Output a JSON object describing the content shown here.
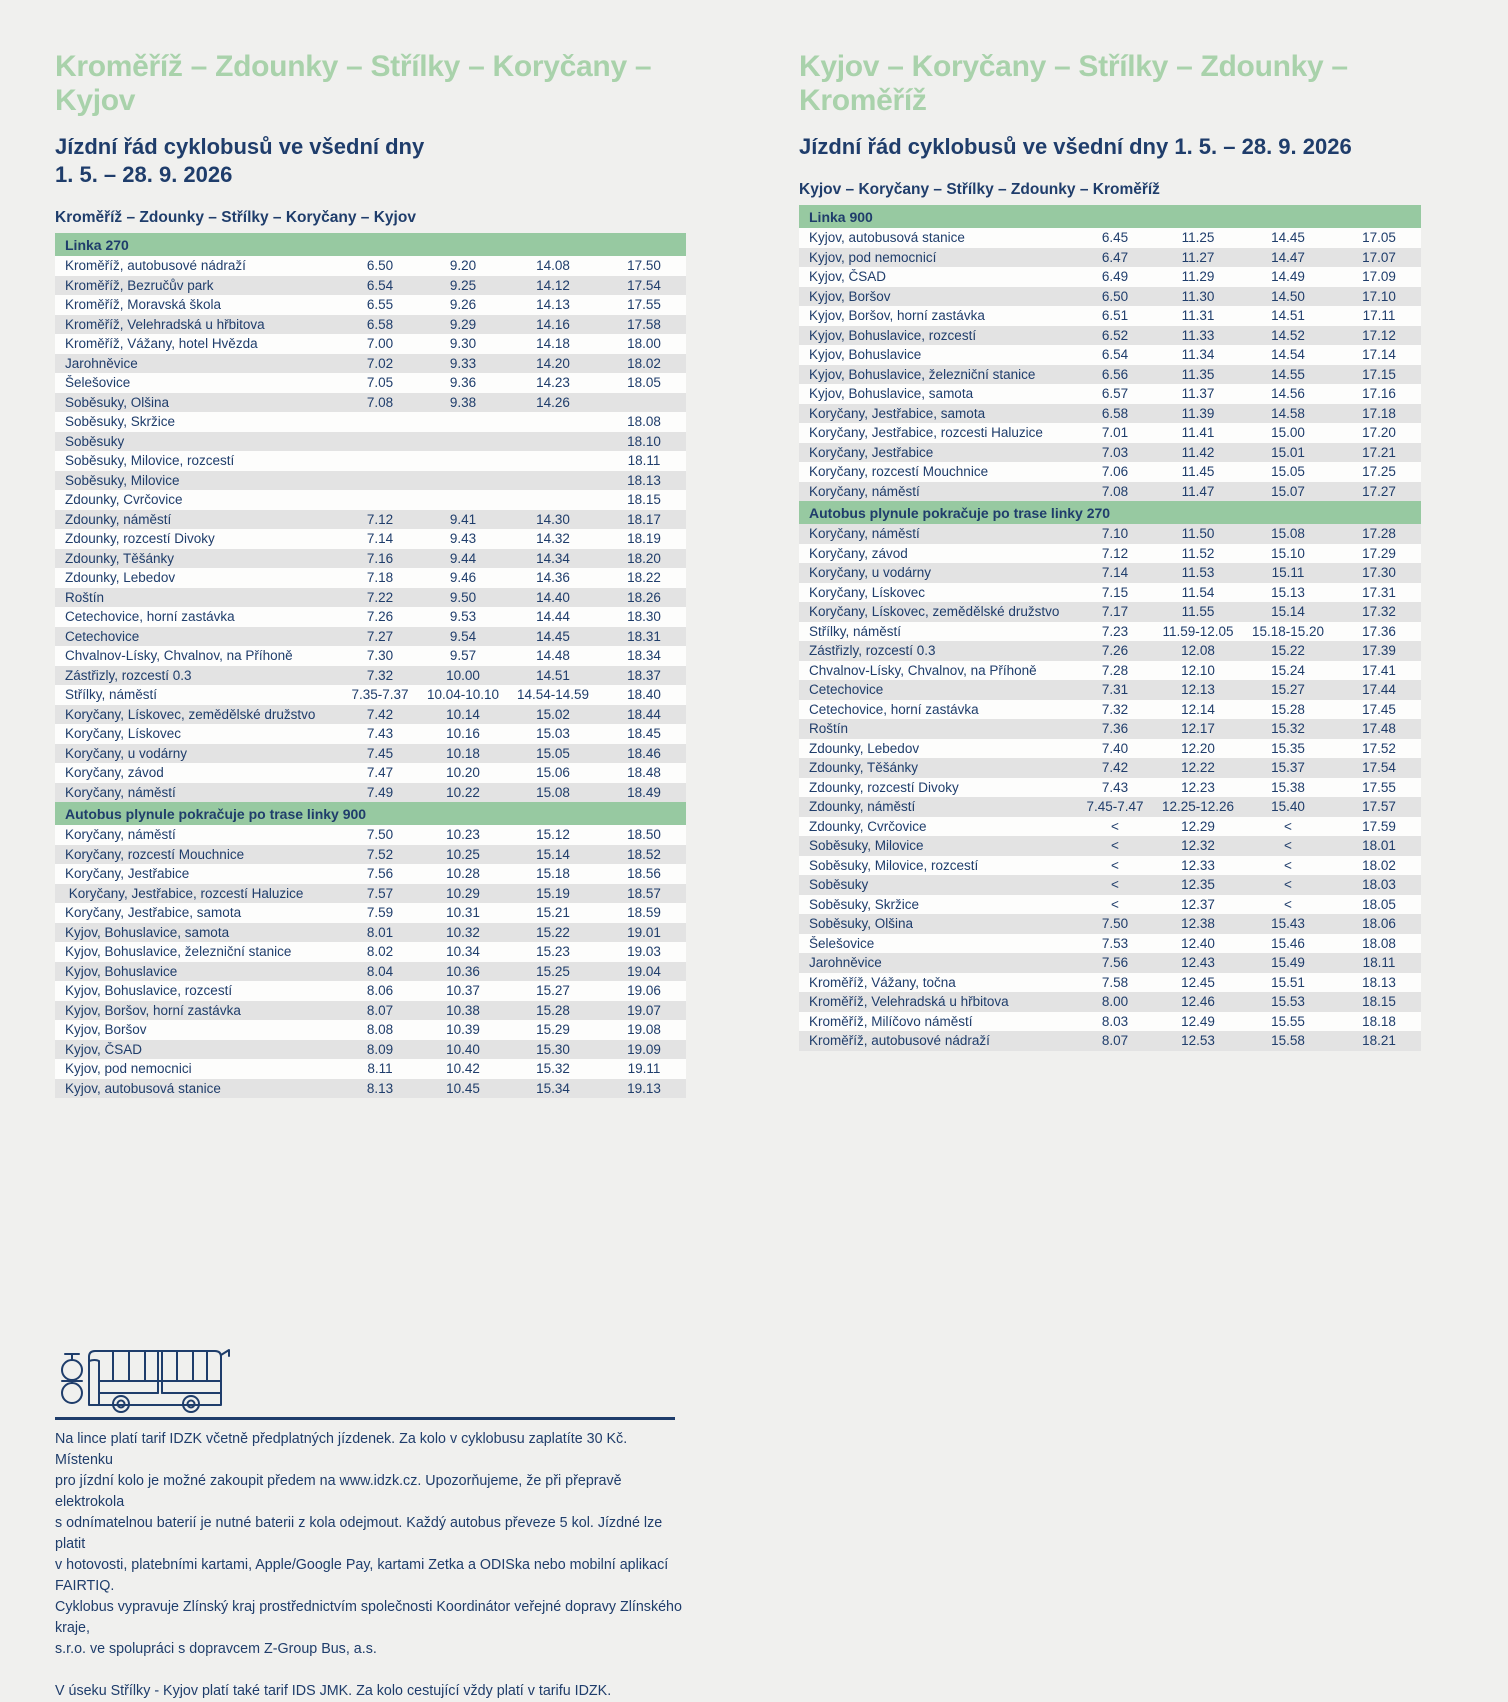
{
  "colors": {
    "background": "#f0f0ee",
    "title_green": "#a9d2ab",
    "band_green": "#97c9a1",
    "navy_text": "#1f3d6b",
    "row_shade": "#e3e3e3"
  },
  "left": {
    "title": "Kroměříž – Zdounky – Střílky – Koryčany – Kyjov",
    "subtitle_line1": "Jízdní řád cyklobusů ve všední dny",
    "subtitle_line2": "1. 5. – 28. 9. 2026",
    "caption": "Kroměříž – Zdounky – Střílky – Koryčany – Kyjov",
    "table": {
      "sections": [
        {
          "header": "Linka 270",
          "shaded_when": 1,
          "rows": [
            {
              "stop": "Kroměříž, autobusové nádraží",
              "times": [
                "6.50",
                "9.20",
                "14.08",
                "17.50"
              ]
            },
            {
              "stop": "Kroměříž, Bezručův park",
              "times": [
                "6.54",
                "9.25",
                "14.12",
                "17.54"
              ]
            },
            {
              "stop": "Kroměříž, Moravská škola",
              "times": [
                "6.55",
                "9.26",
                "14.13",
                "17.55"
              ]
            },
            {
              "stop": "Kroměříž, Velehradská u hřbitova",
              "times": [
                "6.58",
                "9.29",
                "14.16",
                "17.58"
              ]
            },
            {
              "stop": "Kroměříž, Vážany, hotel Hvězda",
              "times": [
                "7.00",
                "9.30",
                "14.18",
                "18.00"
              ]
            },
            {
              "stop": "Jarohněvice",
              "times": [
                "7.02",
                "9.33",
                "14.20",
                "18.02"
              ]
            },
            {
              "stop": "Šelešovice",
              "times": [
                "7.05",
                "9.36",
                "14.23",
                "18.05"
              ]
            },
            {
              "stop": "Soběsuky, Olšina",
              "times": [
                "7.08",
                "9.38",
                "14.26",
                ""
              ]
            },
            {
              "stop": "Soběsuky, Skržice",
              "times": [
                "",
                "",
                "",
                "18.08"
              ]
            },
            {
              "stop": "Soběsuky",
              "times": [
                "",
                "",
                "",
                "18.10"
              ]
            },
            {
              "stop": "Soběsuky, Milovice, rozcestí",
              "times": [
                "",
                "",
                "",
                "18.11"
              ]
            },
            {
              "stop": "Soběsuky, Milovice",
              "times": [
                "",
                "",
                "",
                "18.13"
              ]
            },
            {
              "stop": "Zdounky, Cvrčovice",
              "times": [
                "",
                "",
                "",
                "18.15"
              ]
            },
            {
              "stop": "Zdounky, náměstí",
              "times": [
                "7.12",
                "9.41",
                "14.30",
                "18.17"
              ]
            },
            {
              "stop": "Zdounky, rozcestí Divoky",
              "times": [
                "7.14",
                "9.43",
                "14.32",
                "18.19"
              ]
            },
            {
              "stop": "Zdounky, Těšánky",
              "times": [
                "7.16",
                "9.44",
                "14.34",
                "18.20"
              ]
            },
            {
              "stop": "Zdounky, Lebedov",
              "times": [
                "7.18",
                "9.46",
                "14.36",
                "18.22"
              ]
            },
            {
              "stop": "Roštín",
              "times": [
                "7.22",
                "9.50",
                "14.40",
                "18.26"
              ]
            },
            {
              "stop": "Cetechovice, horní zastávka",
              "times": [
                "7.26",
                "9.53",
                "14.44",
                "18.30"
              ]
            },
            {
              "stop": "Cetechovice",
              "times": [
                "7.27",
                "9.54",
                "14.45",
                "18.31"
              ]
            },
            {
              "stop": "Chvalnov-Lísky, Chvalnov, na Příhoně",
              "times": [
                "7.30",
                "9.57",
                "14.48",
                "18.34"
              ]
            },
            {
              "stop": "Zástřizly, rozcestí 0.3",
              "times": [
                "7.32",
                "10.00",
                "14.51",
                "18.37"
              ]
            },
            {
              "stop": "Střílky, náměstí",
              "times": [
                "7.35-7.37",
                "10.04-10.10",
                "14.54-14.59",
                "18.40"
              ]
            },
            {
              "stop": "Koryčany, Lískovec, zemědělské družstvo",
              "times": [
                "7.42",
                "10.14",
                "15.02",
                "18.44"
              ]
            },
            {
              "stop": "Koryčany, Lískovec",
              "times": [
                "7.43",
                "10.16",
                "15.03",
                "18.45"
              ]
            },
            {
              "stop": "Koryčany, u vodárny",
              "times": [
                "7.45",
                "10.18",
                "15.05",
                "18.46"
              ]
            },
            {
              "stop": "Koryčany, závod",
              "times": [
                "7.47",
                "10.20",
                "15.06",
                "18.48"
              ]
            },
            {
              "stop": "Koryčany, náměstí",
              "times": [
                "7.49",
                "10.22",
                "15.08",
                "18.49"
              ]
            }
          ]
        },
        {
          "header": "Autobus plynule pokračuje po trase linky 900",
          "shaded_when": 1,
          "rows": [
            {
              "stop": "Koryčany, náměstí",
              "times": [
                "7.50",
                "10.23",
                "15.12",
                "18.50"
              ]
            },
            {
              "stop": "Koryčany, rozcestí Mouchnice",
              "times": [
                "7.52",
                "10.25",
                "15.14",
                "18.52"
              ]
            },
            {
              "stop": "Koryčany, Jestřabice",
              "times": [
                "7.56",
                "10.28",
                "15.18",
                "18.56"
              ]
            },
            {
              "stop": " Koryčany, Jestřabice, rozcestí Haluzice",
              "times": [
                "7.57",
                "10.29",
                "15.19",
                "18.57"
              ]
            },
            {
              "stop": "Koryčany, Jestřabice, samota",
              "times": [
                "7.59",
                "10.31",
                "15.21",
                "18.59"
              ]
            },
            {
              "stop": "Kyjov, Bohuslavice, samota",
              "times": [
                "8.01",
                "10.32",
                "15.22",
                "19.01"
              ]
            },
            {
              "stop": "Kyjov, Bohuslavice, železniční stanice",
              "times": [
                "8.02",
                "10.34",
                "15.23",
                "19.03"
              ]
            },
            {
              "stop": "Kyjov, Bohuslavice",
              "times": [
                "8.04",
                "10.36",
                "15.25",
                "19.04"
              ]
            },
            {
              "stop": "Kyjov, Bohuslavice, rozcestí",
              "times": [
                "8.06",
                "10.37",
                "15.27",
                "19.06"
              ]
            },
            {
              "stop": "Kyjov, Boršov, horní zastávka",
              "times": [
                "8.07",
                "10.38",
                "15.28",
                "19.07"
              ]
            },
            {
              "stop": "Kyjov, Boršov",
              "times": [
                "8.08",
                "10.39",
                "15.29",
                "19.08"
              ]
            },
            {
              "stop": "Kyjov, ČSAD",
              "times": [
                "8.09",
                "10.40",
                "15.30",
                "19.09"
              ]
            },
            {
              "stop": "Kyjov, pod nemocnici",
              "times": [
                "8.11",
                "10.42",
                "15.32",
                "19.11"
              ]
            },
            {
              "stop": "Kyjov, autobusová stanice",
              "times": [
                "8.13",
                "10.45",
                "15.34",
                "19.13"
              ]
            }
          ]
        }
      ]
    }
  },
  "right": {
    "title": "Kyjov – Koryčany – Střílky – Zdounky – Kroměříž",
    "subtitle": "Jízdní řád cyklobusů ve všední dny 1. 5. – 28. 9. 2026",
    "caption": "Kyjov – Koryčany – Střílky – Zdounky – Kroměříž",
    "table": {
      "sections": [
        {
          "header": "Linka 900",
          "shaded_when": 1,
          "rows": [
            {
              "stop": "Kyjov, autobusová stanice",
              "times": [
                "6.45",
                "11.25",
                "14.45",
                "17.05"
              ]
            },
            {
              "stop": "Kyjov, pod nemocnicí",
              "times": [
                "6.47",
                "11.27",
                "14.47",
                "17.07"
              ]
            },
            {
              "stop": "Kyjov, ČSAD",
              "times": [
                "6.49",
                "11.29",
                "14.49",
                "17.09"
              ]
            },
            {
              "stop": "Kyjov, Boršov",
              "times": [
                "6.50",
                "11.30",
                "14.50",
                "17.10"
              ]
            },
            {
              "stop": "Kyjov, Boršov, horní zastávka",
              "times": [
                "6.51",
                "11.31",
                "14.51",
                "17.11"
              ]
            },
            {
              "stop": "Kyjov, Bohuslavice, rozcestí",
              "times": [
                "6.52",
                "11.33",
                "14.52",
                "17.12"
              ]
            },
            {
              "stop": "Kyjov, Bohuslavice",
              "times": [
                "6.54",
                "11.34",
                "14.54",
                "17.14"
              ]
            },
            {
              "stop": "Kyjov, Bohuslavice, železniční stanice",
              "times": [
                "6.56",
                "11.35",
                "14.55",
                "17.15"
              ]
            },
            {
              "stop": "Kyjov, Bohuslavice, samota",
              "times": [
                "6.57",
                "11.37",
                "14.56",
                "17.16"
              ]
            },
            {
              "stop": "Koryčany, Jestřabice, samota",
              "times": [
                "6.58",
                "11.39",
                "14.58",
                "17.18"
              ]
            },
            {
              "stop": "Koryčany, Jestřabice, rozcesti Haluzice",
              "times": [
                "7.01",
                "11.41",
                "15.00",
                "17.20"
              ]
            },
            {
              "stop": "Koryčany, Jestřabice",
              "times": [
                "7.03",
                "11.42",
                "15.01",
                "17.21"
              ]
            },
            {
              "stop": "Koryčany, rozcestí Mouchnice",
              "times": [
                "7.06",
                "11.45",
                "15.05",
                "17.25"
              ]
            },
            {
              "stop": "Koryčany, náměstí",
              "times": [
                "7.08",
                "11.47",
                "15.07",
                "17.27"
              ]
            }
          ]
        },
        {
          "header": "Autobus plynule pokračuje po trase linky 270",
          "shaded_when": 0,
          "rows": [
            {
              "stop": "Koryčany, náměstí",
              "times": [
                "7.10",
                "11.50",
                "15.08",
                "17.28"
              ]
            },
            {
              "stop": "Koryčany, závod",
              "times": [
                "7.12",
                "11.52",
                "15.10",
                "17.29"
              ]
            },
            {
              "stop": "Koryčany, u vodárny",
              "times": [
                "7.14",
                "11.53",
                "15.11",
                "17.30"
              ]
            },
            {
              "stop": "Koryčany, Lískovec",
              "times": [
                "7.15",
                "11.54",
                "15.13",
                "17.31"
              ]
            },
            {
              "stop": "Koryčany, Lískovec, zemědělské družstvo",
              "times": [
                "7.17",
                "11.55",
                "15.14",
                "17.32"
              ]
            },
            {
              "stop": "Střílky, náměstí",
              "times": [
                "7.23",
                "11.59-12.05",
                "15.18-15.20",
                "17.36"
              ]
            },
            {
              "stop": "Zástřizly, rozcestí 0.3",
              "times": [
                "7.26",
                "12.08",
                "15.22",
                "17.39"
              ]
            },
            {
              "stop": "Chvalnov-Lísky, Chvalnov, na Příhoně",
              "times": [
                "7.28",
                "12.10",
                "15.24",
                "17.41"
              ]
            },
            {
              "stop": "Cetechovice",
              "times": [
                "7.31",
                "12.13",
                "15.27",
                "17.44"
              ]
            },
            {
              "stop": "Cetechovice, horní zastávka",
              "times": [
                "7.32",
                "12.14",
                "15.28",
                "17.45"
              ]
            },
            {
              "stop": "Roštín",
              "times": [
                "7.36",
                "12.17",
                "15.32",
                "17.48"
              ]
            },
            {
              "stop": "Zdounky, Lebedov",
              "times": [
                "7.40",
                "12.20",
                "15.35",
                "17.52"
              ]
            },
            {
              "stop": "Zdounky, Těšánky",
              "times": [
                "7.42",
                "12.22",
                "15.37",
                "17.54"
              ]
            },
            {
              "stop": "Zdounky, rozcestí Divoky",
              "times": [
                "7.43",
                "12.23",
                "15.38",
                "17.55"
              ]
            },
            {
              "stop": "Zdounky, náměstí",
              "times": [
                "7.45-7.47",
                "12.25-12.26",
                "15.40",
                "17.57"
              ]
            },
            {
              "stop": "Zdounky, Cvrčovice",
              "times": [
                "<",
                "12.29",
                "<",
                "17.59"
              ]
            },
            {
              "stop": "Soběsuky, Milovice",
              "times": [
                "<",
                "12.32",
                "<",
                "18.01"
              ]
            },
            {
              "stop": "Soběsuky, Milovice, rozcestí",
              "times": [
                "<",
                "12.33",
                "<",
                "18.02"
              ]
            },
            {
              "stop": "Soběsuky",
              "times": [
                "<",
                "12.35",
                "<",
                "18.03"
              ]
            },
            {
              "stop": "Soběsuky, Skržice",
              "times": [
                "<",
                "12.37",
                "<",
                "18.05"
              ]
            },
            {
              "stop": "Soběsuky, Olšina",
              "times": [
                "7.50",
                "12.38",
                "15.43",
                "18.06"
              ]
            },
            {
              "stop": "Šelešovice",
              "times": [
                "7.53",
                "12.40",
                "15.46",
                "18.08"
              ]
            },
            {
              "stop": "Jarohněvice",
              "times": [
                "7.56",
                "12.43",
                "15.49",
                "18.11"
              ]
            },
            {
              "stop": "Kroměříž, Vážany, točna",
              "times": [
                "7.58",
                "12.45",
                "15.51",
                "18.13"
              ]
            },
            {
              "stop": "Kroměříž, Velehradská u hřbitova",
              "times": [
                "8.00",
                "12.46",
                "15.53",
                "18.15"
              ]
            },
            {
              "stop": "Kroměříž, Milíčovo náměstí",
              "times": [
                "8.03",
                "12.49",
                "15.55",
                "18.18"
              ]
            },
            {
              "stop": "Kroměříž, autobusové nádraží",
              "times": [
                "8.07",
                "12.53",
                "15.58",
                "18.21"
              ]
            }
          ]
        }
      ]
    }
  },
  "footer": {
    "note": "Na lince platí tarif IDZK včetně předplatných jízdenek. Za kolo v cyklobusu zaplatíte 30 Kč. Místenku\npro jízdní kolo je možné zakoupit předem na www.idzk.cz. Upozorňujeme, že při přepravě elektrokola\ns odnímatelnou baterií je nutné baterii z kola odejmout. Každý autobus převeze 5 kol. Jízdné lze platit\nv hotovosti, platebními kartami, Apple/Google Pay, kartami Zetka a ODISka nebo mobilní aplikací FAIRTIQ.\nCyklobus vypravuje Zlínský kraj prostřednictvím společnosti Koordinátor veřejné dopravy Zlínského kraje,\ns.r.o. ve spolupráci s dopravcem Z-Group Bus, a.s.",
    "note2": "V úseku Střílky - Kyjov platí také tarif IDS JMK. Za kolo cestující vždy platí v tarifu IDZK."
  }
}
